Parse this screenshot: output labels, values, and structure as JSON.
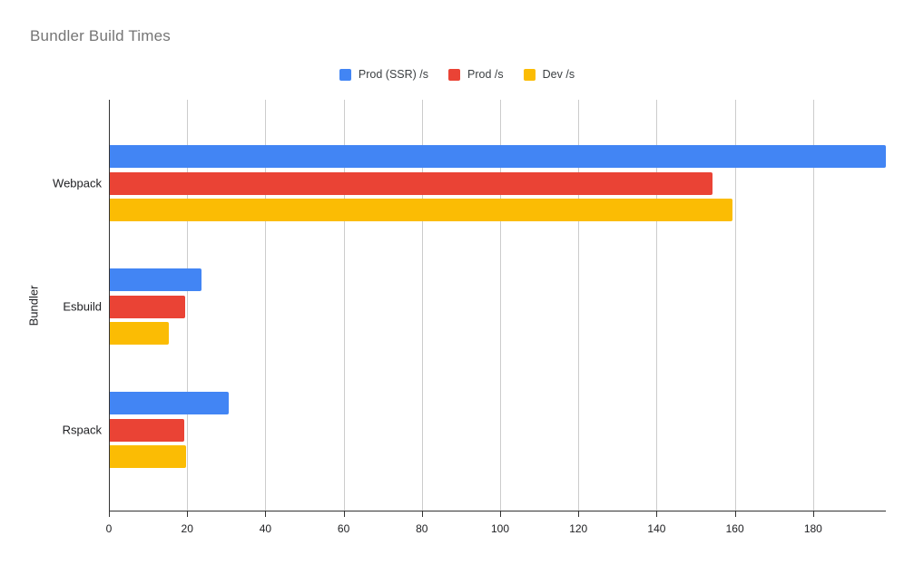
{
  "chart_data": {
    "type": "bar",
    "orientation": "horizontal",
    "title": "Bundler Build Times",
    "xlabel": "",
    "ylabel": "Bundler",
    "categories": [
      "Webpack",
      "Esbuild",
      "Rspack"
    ],
    "series": [
      {
        "name": "Prod (SSR) /s",
        "color": "#4285f4",
        "values": [
          198.6,
          23.6,
          30.7
        ]
      },
      {
        "name": "Prod /s",
        "color": "#ea4335",
        "values": [
          154.3,
          19.5,
          19.2
        ]
      },
      {
        "name": "Dev /s",
        "color": "#fbbc04",
        "values": [
          159.4,
          15.3,
          19.7
        ]
      }
    ],
    "x_ticks": [
      0,
      20,
      40,
      60,
      80,
      100,
      120,
      140,
      160,
      180
    ],
    "xlim": [
      0,
      198.6
    ],
    "grid": "vertical-only",
    "legend_position": "top-center"
  },
  "colors": {
    "background": "#ffffff",
    "title_text": "#757575",
    "axis_text": "#202124",
    "legend_text": "#3c4043",
    "gridline": "#cccccc",
    "axis_line": "#333333"
  }
}
